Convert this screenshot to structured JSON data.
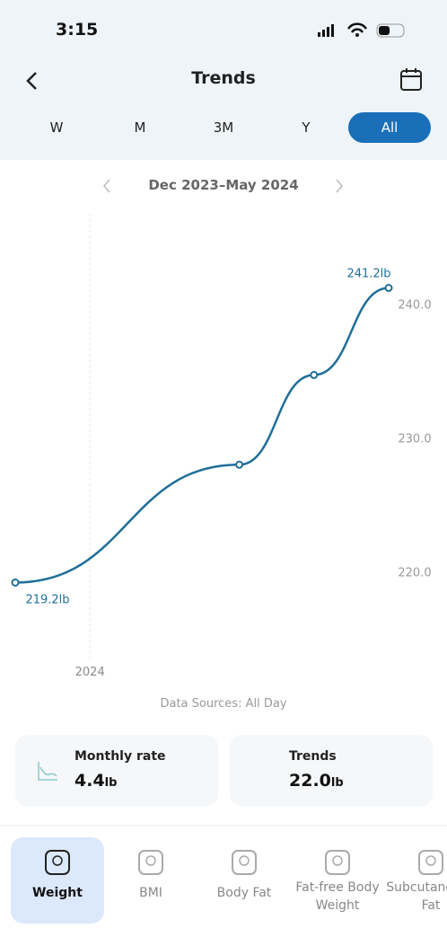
{
  "status_bar": {
    "time": "3:15"
  },
  "header": {
    "title": "Trends"
  },
  "tabs": {
    "items": [
      "W",
      "M",
      "3M",
      "Y",
      "All"
    ],
    "selected": 4
  },
  "date_range": "Dec 2023–May 2024",
  "chart_data": {
    "type": "line",
    "color": "#1f6f99",
    "x": [
      0,
      3,
      4,
      5
    ],
    "values": [
      219.2,
      228.0,
      234.7,
      241.2
    ],
    "value_labels": [
      "219.2lb",
      null,
      null,
      "241.2lb"
    ],
    "xlim": [
      0,
      5
    ],
    "xticks": [
      {
        "value": 1,
        "label": "2024"
      }
    ],
    "ylim": [
      214.4,
      246.6
    ],
    "yticks": [
      {
        "value": 220,
        "label": "220.0"
      },
      {
        "value": 230,
        "label": "230.0"
      },
      {
        "value": 240,
        "label": "240.0"
      }
    ]
  },
  "data_sources": "Data Sources: All Day",
  "cards": [
    {
      "title": "Monthly rate",
      "value": "4.4",
      "unit": "lb"
    },
    {
      "title": "Trends",
      "value": "22.0",
      "unit": "lb"
    }
  ],
  "nav": {
    "items": [
      "Weight",
      "BMI",
      "Body Fat",
      "Fat-free Body Weight",
      "Subcutaneous Fat"
    ],
    "selected": 0
  }
}
